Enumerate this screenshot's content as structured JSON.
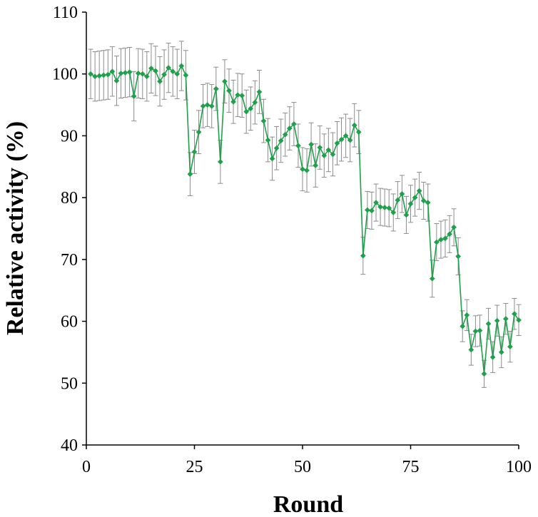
{
  "chart_data": {
    "type": "line",
    "title": "",
    "xlabel": "Round",
    "ylabel": "Relative activity (%)",
    "xlim": [
      0,
      100
    ],
    "ylim": [
      40,
      110
    ],
    "xticks": [
      0,
      25,
      50,
      75,
      100
    ],
    "yticks": [
      40,
      50,
      60,
      70,
      80,
      90,
      100,
      110
    ],
    "grid": false,
    "legend": "none",
    "colors": {
      "series": "#1fa04a",
      "error_bar": "#8c8c8c",
      "axis": "#000000"
    },
    "series": [
      {
        "x": [
          1,
          2,
          3,
          4,
          5,
          6,
          7,
          8,
          9,
          10,
          11,
          12,
          13,
          14,
          15,
          16,
          17,
          18,
          19,
          20,
          21,
          22,
          23,
          24,
          25,
          26,
          27,
          28,
          29,
          30,
          31,
          32,
          33,
          34,
          35,
          36,
          37,
          38,
          39,
          40,
          41,
          42,
          43,
          44,
          45,
          46,
          47,
          48,
          49,
          50,
          51,
          52,
          53,
          54,
          55,
          56,
          57,
          58,
          59,
          60,
          61,
          62,
          63,
          64,
          65,
          66,
          67,
          68,
          69,
          70,
          71,
          72,
          73,
          74,
          75,
          76,
          77,
          78,
          79,
          80,
          81,
          82,
          83,
          84,
          85,
          86,
          87,
          88,
          89,
          90,
          91,
          92,
          93,
          94,
          95,
          96,
          97,
          98,
          99,
          100
        ],
        "y": [
          100.0,
          99.6,
          99.7,
          99.8,
          99.9,
          100.4,
          98.9,
          100.1,
          100.2,
          100.3,
          96.4,
          100.1,
          100.0,
          99.6,
          100.9,
          100.5,
          98.8,
          99.9,
          101.0,
          100.4,
          100.0,
          101.3,
          99.8,
          83.8,
          87.4,
          90.6,
          94.8,
          95.0,
          94.8,
          97.6,
          85.8,
          98.8,
          97.3,
          95.5,
          96.6,
          96.5,
          93.9,
          94.4,
          95.4,
          97.1,
          92.4,
          89.3,
          86.3,
          88.0,
          89.2,
          90.2,
          91.2,
          91.9,
          88.4,
          84.6,
          84.4,
          88.6,
          85.2,
          88.1,
          86.8,
          87.7,
          87.0,
          88.8,
          89.4,
          90.0,
          89.3,
          91.7,
          90.6,
          70.6,
          78.0,
          77.9,
          79.2,
          78.5,
          78.4,
          78.3,
          77.6,
          79.6,
          80.6,
          77.2,
          79.0,
          80.0,
          81.1,
          79.5,
          79.2,
          66.9,
          72.8,
          73.2,
          73.4,
          74.1,
          75.2,
          70.5,
          59.2,
          61.0,
          55.4,
          58.4,
          58.5,
          51.5,
          59.6,
          54.2,
          60.1,
          55.0,
          60.4,
          55.9,
          61.2,
          60.2
        ],
        "error": [
          4.0,
          4.0,
          4.0,
          4.0,
          4.0,
          4.0,
          4.0,
          4.0,
          4.0,
          4.0,
          4.0,
          4.0,
          4.0,
          4.0,
          4.0,
          4.0,
          4.0,
          4.0,
          4.0,
          4.0,
          4.0,
          4.0,
          4.0,
          3.5,
          3.5,
          3.5,
          3.5,
          3.5,
          3.5,
          3.5,
          3.5,
          3.5,
          3.5,
          3.5,
          3.5,
          3.5,
          3.5,
          3.5,
          3.5,
          3.5,
          3.5,
          3.5,
          3.5,
          3.5,
          3.5,
          3.5,
          3.5,
          3.5,
          3.5,
          3.5,
          3.5,
          3.5,
          3.5,
          3.5,
          3.5,
          3.5,
          3.5,
          3.5,
          3.5,
          3.5,
          3.5,
          3.5,
          3.5,
          3.0,
          3.0,
          3.0,
          3.0,
          3.0,
          3.0,
          3.0,
          3.0,
          3.0,
          3.0,
          3.0,
          3.0,
          3.0,
          3.0,
          3.0,
          3.0,
          3.0,
          3.0,
          3.0,
          3.0,
          3.0,
          3.0,
          3.0,
          2.5,
          2.5,
          2.5,
          2.5,
          2.5,
          2.2,
          2.5,
          2.5,
          2.5,
          2.5,
          2.5,
          2.5,
          2.5,
          2.5
        ]
      }
    ]
  }
}
